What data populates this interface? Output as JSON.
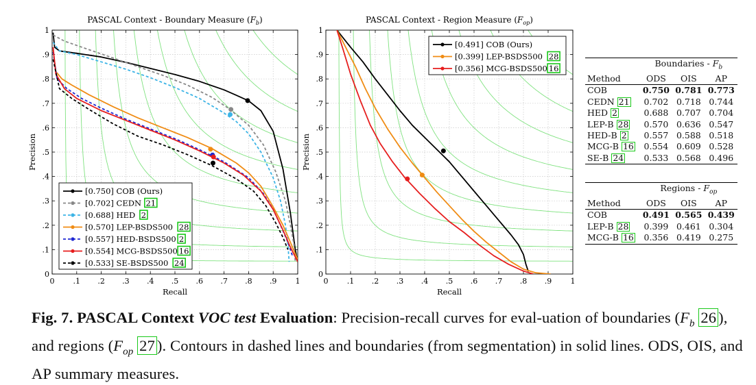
{
  "chart_data": [
    {
      "type": "line",
      "title": "PASCAL Context - Boundary Measure (",
      "title_symbol": "F",
      "title_sub": "b",
      "title_end": ")",
      "xlabel": "Recall",
      "ylabel": "Precision",
      "xlim": [
        0,
        1
      ],
      "ylim": [
        0,
        1
      ],
      "xticks": [
        "0",
        ".1",
        ".2",
        ".3",
        ".4",
        ".5",
        ".6",
        ".7",
        ".8",
        ".9",
        "1"
      ],
      "yticks": [
        "0",
        ".1",
        ".2",
        ".3",
        ".4",
        ".5",
        ".6",
        ".7",
        ".8",
        ".9",
        "1"
      ],
      "grid": true,
      "iso_f_contours": [
        0.1,
        0.2,
        0.3,
        0.4,
        0.5,
        0.6,
        0.7,
        0.8,
        0.9
      ],
      "legend_position": "bottom-left",
      "series": [
        {
          "name": "[0.750] COB (Ours)",
          "label": "[0.750] COB (Ours)",
          "cite": "",
          "color": "#000000",
          "dash": "solid",
          "points": [
            [
              0.004,
              0.99
            ],
            [
              0.01,
              0.93
            ],
            [
              0.03,
              0.915
            ],
            [
              0.1,
              0.905
            ],
            [
              0.2,
              0.89
            ],
            [
              0.3,
              0.868
            ],
            [
              0.4,
              0.843
            ],
            [
              0.5,
              0.818
            ],
            [
              0.6,
              0.79
            ],
            [
              0.7,
              0.755
            ],
            [
              0.75,
              0.733
            ],
            [
              0.8,
              0.71
            ],
            [
              0.85,
              0.67
            ],
            [
              0.9,
              0.585
            ],
            [
              0.94,
              0.43
            ],
            [
              0.97,
              0.25
            ],
            [
              0.99,
              0.1
            ],
            [
              1.0,
              0.05
            ]
          ],
          "marker": [
            0.796,
            0.711
          ]
        },
        {
          "name": "[0.702] CEDN",
          "label": "[0.702] CEDN",
          "cite": "21",
          "color": "#888888",
          "dash": "dashed",
          "points": [
            [
              0.004,
              0.98
            ],
            [
              0.05,
              0.955
            ],
            [
              0.15,
              0.92
            ],
            [
              0.25,
              0.885
            ],
            [
              0.35,
              0.85
            ],
            [
              0.45,
              0.815
            ],
            [
              0.55,
              0.775
            ],
            [
              0.65,
              0.725
            ],
            [
              0.72,
              0.678
            ],
            [
              0.8,
              0.61
            ],
            [
              0.86,
              0.53
            ],
            [
              0.91,
              0.42
            ],
            [
              0.95,
              0.3
            ],
            [
              0.97,
              0.2
            ],
            [
              0.985,
              0.12
            ],
            [
              0.99,
              0.05
            ]
          ],
          "marker": [
            0.728,
            0.675
          ]
        },
        {
          "name": "[0.688] HED",
          "label": "[0.688] HED",
          "cite": "2",
          "color": "#3cb4e6",
          "dash": "dashed",
          "points": [
            [
              0.004,
              0.95
            ],
            [
              0.03,
              0.915
            ],
            [
              0.1,
              0.9
            ],
            [
              0.2,
              0.87
            ],
            [
              0.3,
              0.84
            ],
            [
              0.4,
              0.805
            ],
            [
              0.5,
              0.765
            ],
            [
              0.6,
              0.72
            ],
            [
              0.7,
              0.66
            ],
            [
              0.75,
              0.625
            ],
            [
              0.8,
              0.575
            ],
            [
              0.85,
              0.5
            ],
            [
              0.9,
              0.395
            ],
            [
              0.93,
              0.3
            ],
            [
              0.95,
              0.2
            ],
            [
              0.96,
              0.12
            ],
            [
              0.965,
              0.05
            ]
          ],
          "marker": [
            0.725,
            0.654
          ]
        },
        {
          "name": "[0.570] LEP-BSDS500",
          "label": "[0.570] LEP-BSDS500",
          "cite": "28",
          "color": "#f08c14",
          "dash": "solid",
          "points": [
            [
              0.004,
              0.92
            ],
            [
              0.015,
              0.83
            ],
            [
              0.04,
              0.8
            ],
            [
              0.08,
              0.775
            ],
            [
              0.15,
              0.735
            ],
            [
              0.25,
              0.685
            ],
            [
              0.35,
              0.64
            ],
            [
              0.45,
              0.6
            ],
            [
              0.55,
              0.56
            ],
            [
              0.65,
              0.515
            ],
            [
              0.75,
              0.455
            ],
            [
              0.8,
              0.415
            ],
            [
              0.85,
              0.36
            ],
            [
              0.9,
              0.275
            ],
            [
              0.94,
              0.2
            ],
            [
              0.97,
              0.13
            ],
            [
              1.0,
              0.06
            ]
          ],
          "marker": [
            0.645,
            0.512
          ]
        },
        {
          "name": "[0.557] HED-BSDS500",
          "label": "[0.557] HED-BSDS500",
          "cite": "2",
          "color": "#1e28d2",
          "dash": "dashed",
          "points": [
            [
              0.004,
              0.91
            ],
            [
              0.02,
              0.8
            ],
            [
              0.06,
              0.76
            ],
            [
              0.12,
              0.72
            ],
            [
              0.2,
              0.68
            ],
            [
              0.3,
              0.635
            ],
            [
              0.4,
              0.595
            ],
            [
              0.5,
              0.555
            ],
            [
              0.6,
              0.51
            ],
            [
              0.7,
              0.46
            ],
            [
              0.8,
              0.395
            ],
            [
              0.86,
              0.33
            ],
            [
              0.9,
              0.265
            ],
            [
              0.93,
              0.2
            ],
            [
              0.96,
              0.13
            ],
            [
              0.98,
              0.07
            ]
          ],
          "marker": [
            0.653,
            0.488
          ]
        },
        {
          "name": "[0.554] MCG-BSDS500",
          "label": "[0.554] MCG-BSDS500",
          "cite": "16",
          "color": "#e61e1e",
          "dash": "solid",
          "points": [
            [
              0.004,
              0.93
            ],
            [
              0.015,
              0.82
            ],
            [
              0.05,
              0.76
            ],
            [
              0.1,
              0.72
            ],
            [
              0.2,
              0.67
            ],
            [
              0.3,
              0.63
            ],
            [
              0.4,
              0.59
            ],
            [
              0.5,
              0.55
            ],
            [
              0.6,
              0.505
            ],
            [
              0.7,
              0.455
            ],
            [
              0.78,
              0.405
            ],
            [
              0.85,
              0.34
            ],
            [
              0.9,
              0.265
            ],
            [
              0.94,
              0.18
            ],
            [
              0.97,
              0.11
            ],
            [
              1.0,
              0.05
            ]
          ],
          "marker": [
            0.657,
            0.48
          ]
        },
        {
          "name": "[0.533] SE-BSDS500",
          "label": "[0.533] SE-BSDS500",
          "cite": "24",
          "color": "#000000",
          "dash": "dashed",
          "points": [
            [
              0.004,
              0.88
            ],
            [
              0.03,
              0.76
            ],
            [
              0.08,
              0.72
            ],
            [
              0.15,
              0.675
            ],
            [
              0.25,
              0.615
            ],
            [
              0.35,
              0.565
            ],
            [
              0.45,
              0.53
            ],
            [
              0.55,
              0.49
            ],
            [
              0.65,
              0.445
            ],
            [
              0.75,
              0.39
            ],
            [
              0.82,
              0.34
            ],
            [
              0.87,
              0.28
            ],
            [
              0.91,
              0.21
            ],
            [
              0.94,
              0.15
            ],
            [
              0.96,
              0.1
            ]
          ],
          "marker": [
            0.655,
            0.455
          ]
        }
      ]
    },
    {
      "type": "line",
      "title": "PASCAL Context - Region Measure (",
      "title_symbol": "F",
      "title_sub": "op",
      "title_end": ")",
      "xlabel": "Recall",
      "ylabel": "Precision",
      "xlim": [
        0,
        1
      ],
      "ylim": [
        0,
        1
      ],
      "xticks": [
        "0",
        ".1",
        ".2",
        ".3",
        ".4",
        ".5",
        ".6",
        ".7",
        ".8",
        ".9",
        "1"
      ],
      "yticks": [
        "0",
        ".1",
        ".2",
        ".3",
        ".4",
        ".5",
        ".6",
        ".7",
        ".8",
        ".9",
        "1"
      ],
      "grid": true,
      "iso_f_contours": [
        0.1,
        0.2,
        0.3,
        0.4,
        0.5,
        0.6,
        0.7,
        0.8,
        0.9
      ],
      "legend_position": "top-right",
      "series": [
        {
          "name": "[0.491] COB (Ours)",
          "label": "[0.491] COB (Ours)",
          "cite": "",
          "color": "#000000",
          "dash": "solid",
          "points": [
            [
              0.045,
              1.0
            ],
            [
              0.1,
              0.93
            ],
            [
              0.15,
              0.87
            ],
            [
              0.2,
              0.8
            ],
            [
              0.25,
              0.735
            ],
            [
              0.3,
              0.67
            ],
            [
              0.35,
              0.61
            ],
            [
              0.4,
              0.56
            ],
            [
              0.45,
              0.51
            ],
            [
              0.5,
              0.46
            ],
            [
              0.55,
              0.4
            ],
            [
              0.6,
              0.34
            ],
            [
              0.65,
              0.28
            ],
            [
              0.7,
              0.22
            ],
            [
              0.75,
              0.16
            ],
            [
              0.78,
              0.12
            ],
            [
              0.8,
              0.08
            ],
            [
              0.81,
              0.04
            ],
            [
              0.82,
              0.01
            ]
          ],
          "marker": [
            0.476,
            0.505
          ]
        },
        {
          "name": "[0.399] LEP-BSDS500",
          "label": "[0.399] LEP-BSDS500",
          "cite": "28",
          "color": "#f08c14",
          "dash": "solid",
          "points": [
            [
              0.045,
              1.0
            ],
            [
              0.08,
              0.93
            ],
            [
              0.12,
              0.85
            ],
            [
              0.16,
              0.76
            ],
            [
              0.2,
              0.68
            ],
            [
              0.25,
              0.595
            ],
            [
              0.3,
              0.52
            ],
            [
              0.35,
              0.455
            ],
            [
              0.4,
              0.395
            ],
            [
              0.45,
              0.335
            ],
            [
              0.5,
              0.28
            ],
            [
              0.55,
              0.225
            ],
            [
              0.6,
              0.175
            ],
            [
              0.65,
              0.13
            ],
            [
              0.7,
              0.09
            ],
            [
              0.75,
              0.05
            ],
            [
              0.8,
              0.02
            ],
            [
              0.85,
              0.005
            ],
            [
              0.91,
              0.0
            ]
          ],
          "marker": [
            0.39,
            0.406
          ]
        },
        {
          "name": "[0.356] MCG-BSDS500",
          "label": "[0.356] MCG-BSDS500",
          "cite": "16",
          "color": "#e61e1e",
          "dash": "solid",
          "points": [
            [
              0.045,
              1.0
            ],
            [
              0.07,
              0.92
            ],
            [
              0.1,
              0.82
            ],
            [
              0.14,
              0.71
            ],
            [
              0.18,
              0.61
            ],
            [
              0.22,
              0.535
            ],
            [
              0.27,
              0.46
            ],
            [
              0.32,
              0.395
            ],
            [
              0.38,
              0.33
            ],
            [
              0.44,
              0.27
            ],
            [
              0.5,
              0.215
            ],
            [
              0.56,
              0.17
            ],
            [
              0.62,
              0.12
            ],
            [
              0.68,
              0.075
            ],
            [
              0.74,
              0.04
            ],
            [
              0.8,
              0.012
            ],
            [
              0.84,
              0.0
            ]
          ],
          "marker": [
            0.33,
            0.39
          ]
        }
      ]
    }
  ],
  "boundaries_table": {
    "group_title": "Boundaries - ",
    "group_symbol": "F",
    "group_sub": "b",
    "headers": [
      "Method",
      "ODS",
      "OIS",
      "AP"
    ],
    "rows": [
      {
        "method": "COB",
        "cite": "",
        "ods": "0.750",
        "ois": "0.781",
        "ap": "0.773",
        "bold": true
      },
      {
        "method": "CEDN",
        "cite": "21",
        "ods": "0.702",
        "ois": "0.718",
        "ap": "0.744",
        "bold": false
      },
      {
        "method": "HED",
        "cite": "2",
        "ods": "0.688",
        "ois": "0.707",
        "ap": "0.704",
        "bold": false
      },
      {
        "method": "LEP-B",
        "cite": "28",
        "ods": "0.570",
        "ois": "0.636",
        "ap": "0.547",
        "bold": false
      },
      {
        "method": "HED-B",
        "cite": "2",
        "ods": "0.557",
        "ois": "0.588",
        "ap": "0.518",
        "bold": false
      },
      {
        "method": "MCG-B",
        "cite": "16",
        "ods": "0.554",
        "ois": "0.609",
        "ap": "0.528",
        "bold": false
      },
      {
        "method": "SE-B",
        "cite": "24",
        "ods": "0.533",
        "ois": "0.568",
        "ap": "0.496",
        "bold": false
      }
    ]
  },
  "regions_table": {
    "group_title": "Regions - ",
    "group_symbol": "F",
    "group_sub": "op",
    "headers": [
      "Method",
      "ODS",
      "OIS",
      "AP"
    ],
    "rows": [
      {
        "method": "COB",
        "cite": "",
        "ods": "0.491",
        "ois": "0.565",
        "ap": "0.439",
        "bold": true
      },
      {
        "method": "LEP-B",
        "cite": "28",
        "ods": "0.399",
        "ois": "0.461",
        "ap": "0.304",
        "bold": false
      },
      {
        "method": "MCG-B",
        "cite": "16",
        "ods": "0.356",
        "ois": "0.419",
        "ap": "0.275",
        "bold": false
      }
    ]
  },
  "caption": {
    "figure_label": "Fig. 7.",
    "heading_a": "PASCAL Context",
    "heading_italic": "VOC test",
    "heading_b": "Evaluation",
    "text_1": ": Precision-recall curves for eval-uation of boundaries (",
    "sym_1": "F",
    "sub_1": "b",
    "cite_1": "26",
    "text_2": "), and regions (",
    "sym_2": "F",
    "sub_2": "op",
    "cite_2": "27",
    "text_3": "). Contours in dashed lines and boundaries (from segmentation) in solid lines. ODS, OIS, and AP summary measures."
  },
  "colors": {
    "iso_f": "#7fe27f",
    "grid": "#c8c8c8",
    "cite_box": "#19c819"
  }
}
